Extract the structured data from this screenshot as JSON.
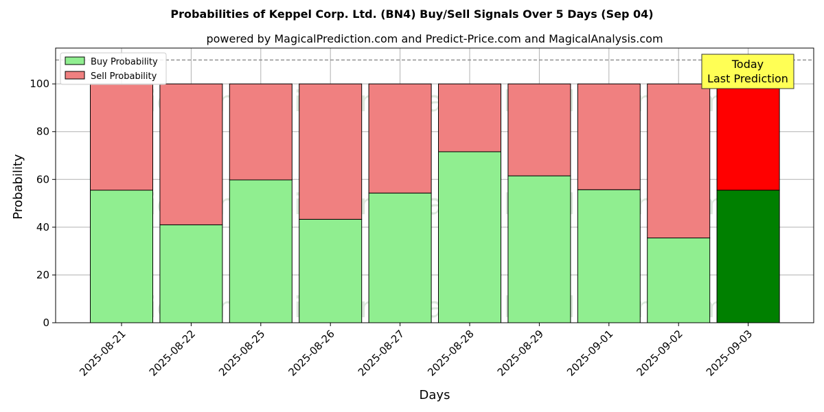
{
  "chart_data": {
    "type": "bar",
    "title": "Probabilities of Keppel Corp. Ltd. (BN4) Buy/Sell Signals Over 5 Days (Sep 04)",
    "subtitle": "powered by MagicalPrediction.com and Predict-Price.com and MagicalAnalysis.com",
    "xlabel": "Days",
    "ylabel": "Probability",
    "ylim": [
      0,
      115
    ],
    "yticks": [
      "0",
      "20",
      "40",
      "60",
      "80",
      "100"
    ],
    "categories": [
      "2025-08-21",
      "2025-08-22",
      "2025-08-25",
      "2025-08-26",
      "2025-08-27",
      "2025-08-28",
      "2025-08-29",
      "2025-09-01",
      "2025-09-02",
      "2025-09-03"
    ],
    "series": [
      {
        "name": "Buy Probability",
        "values": [
          55.5,
          41,
          59.8,
          43.3,
          54.3,
          71.6,
          61.5,
          55.7,
          35.5,
          55.5
        ]
      },
      {
        "name": "Sell Probability",
        "values": [
          44.5,
          59,
          40.2,
          56.7,
          45.7,
          28.4,
          38.5,
          44.3,
          64.5,
          44.5
        ]
      }
    ],
    "reference_line": 110,
    "stacked": true,
    "grid": true,
    "legend_position": "top-left",
    "colors": {
      "buy": "#90ee90",
      "sell": "#f08080",
      "buy_today": "#008000",
      "sell_today": "#ff0000",
      "annotation_bg": "#ffff55"
    },
    "annotation": {
      "line1": "Today",
      "line2": "Last Prediction"
    },
    "watermarks": [
      "MagicalAnalysis.com",
      "MagicalPrediction.com"
    ]
  }
}
